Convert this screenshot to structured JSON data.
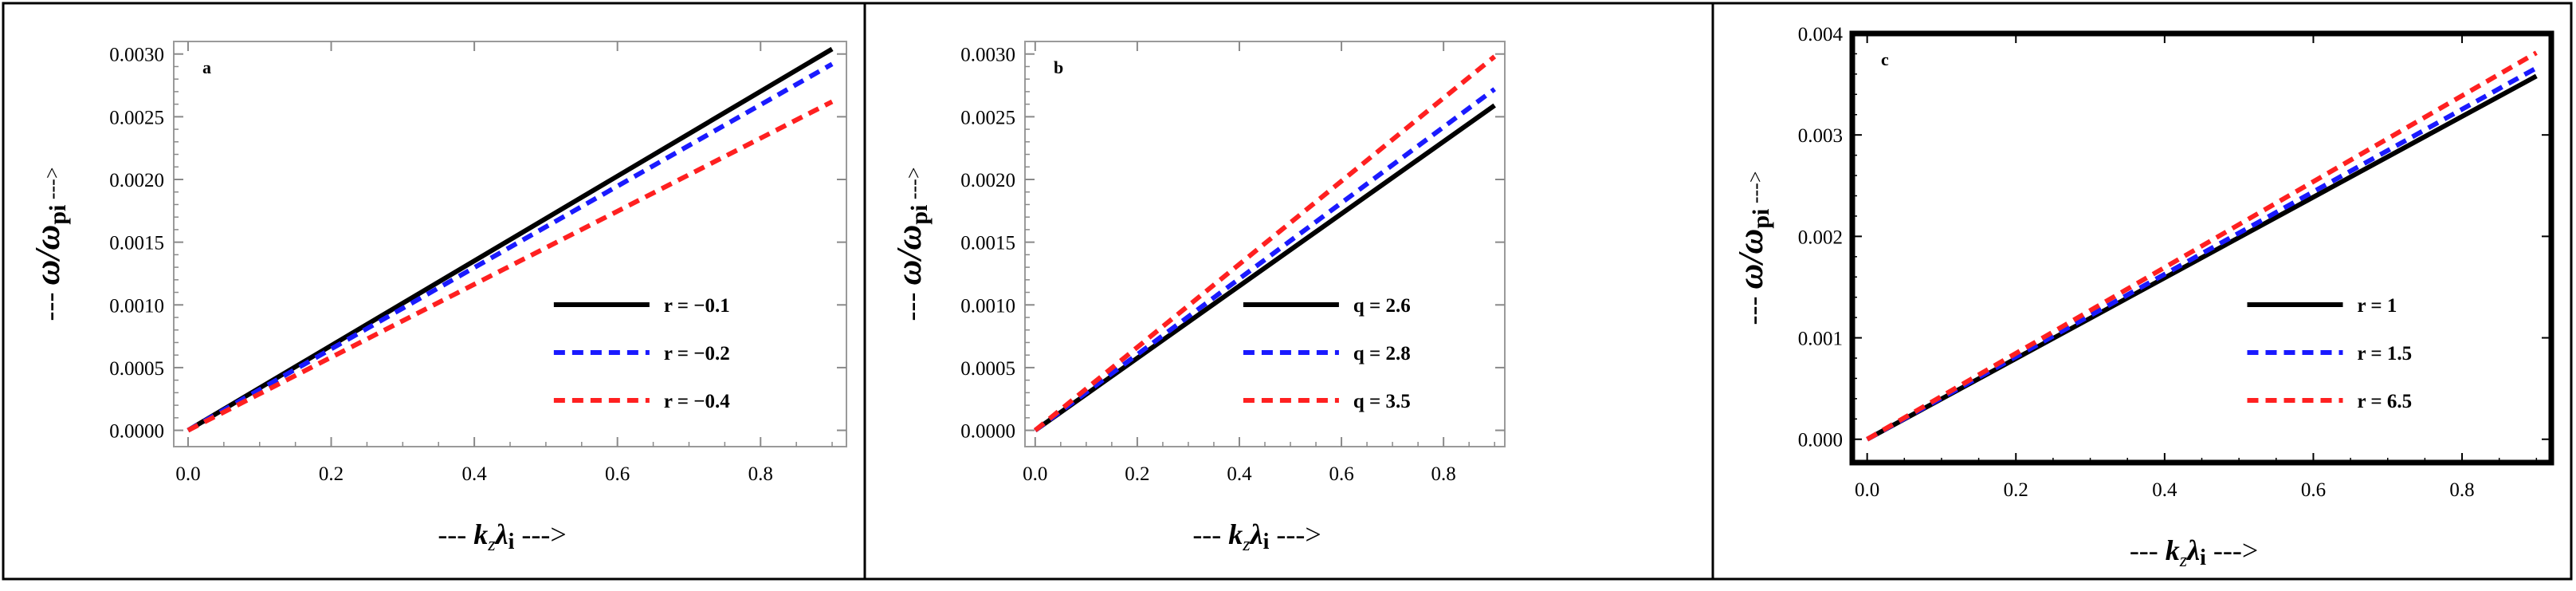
{
  "chart_data": [
    {
      "type": "line",
      "panel_label": "a",
      "xlabel": "k_z λ_i",
      "ylabel": "ω/ω_pi",
      "xlim": [
        -0.02,
        0.92
      ],
      "ylim": [
        -0.00013,
        0.0031
      ],
      "xticks": [
        0.0,
        0.2,
        0.4,
        0.6,
        0.8
      ],
      "xtick_labels": [
        "0.0",
        "0.2",
        "0.4",
        "0.6",
        "0.8"
      ],
      "yticks": [
        0,
        0.0005,
        0.001,
        0.0015,
        0.002,
        0.0025,
        0.003
      ],
      "ytick_labels": [
        "0.0000",
        "0.0005",
        "0.0010",
        "0.0015",
        "0.0020",
        "0.0025",
        "0.0030"
      ],
      "legend_position": "lower-right",
      "series": [
        {
          "name": "r = −0.1",
          "color": "#000000",
          "dashed": false,
          "x": [
            0,
            0.9
          ],
          "values": [
            0,
            0.00304
          ]
        },
        {
          "name": "r = −0.2",
          "color": "#1a1aff",
          "dashed": true,
          "x": [
            0,
            0.9
          ],
          "values": [
            0,
            0.00292
          ]
        },
        {
          "name": "r = −0.4",
          "color": "#ff2020",
          "dashed": true,
          "x": [
            0,
            0.9
          ],
          "values": [
            0,
            0.00262
          ]
        }
      ]
    },
    {
      "type": "line",
      "panel_label": "b",
      "xlabel": "k_z λ_i",
      "ylabel": "ω/ω_pi",
      "xlim": [
        -0.02,
        0.92
      ],
      "ylim": [
        -0.00013,
        0.0031
      ],
      "xticks": [
        0.0,
        0.2,
        0.4,
        0.6,
        0.8
      ],
      "xtick_labels": [
        "0.0",
        "0.2",
        "0.4",
        "0.6",
        "0.8"
      ],
      "yticks": [
        0,
        0.0005,
        0.001,
        0.0015,
        0.002,
        0.0025,
        0.003
      ],
      "ytick_labels": [
        "0.0000",
        "0.0005",
        "0.0010",
        "0.0015",
        "0.0020",
        "0.0025",
        "0.0030"
      ],
      "legend_position": "lower-right",
      "series": [
        {
          "name": "q = 2.6",
          "color": "#000000",
          "dashed": false,
          "x": [
            0,
            0.9
          ],
          "values": [
            0,
            0.00259
          ]
        },
        {
          "name": "q = 2.8",
          "color": "#1a1aff",
          "dashed": true,
          "x": [
            0,
            0.9
          ],
          "values": [
            0,
            0.00272
          ]
        },
        {
          "name": "q = 3.5",
          "color": "#ff2020",
          "dashed": true,
          "x": [
            0,
            0.9
          ],
          "values": [
            0,
            0.00298
          ]
        }
      ]
    },
    {
      "type": "line",
      "panel_label": "c",
      "xlabel": "k_z λ_i",
      "ylabel": "ω/ω_pi",
      "xlim": [
        -0.02,
        0.92
      ],
      "ylim": [
        -0.00023,
        0.004
      ],
      "xticks": [
        0.0,
        0.2,
        0.4,
        0.6,
        0.8
      ],
      "xtick_labels": [
        "0.0",
        "0.2",
        "0.4",
        "0.6",
        "0.8"
      ],
      "yticks": [
        0,
        0.001,
        0.002,
        0.003,
        0.004
      ],
      "ytick_labels": [
        "0.000",
        "0.001",
        "0.002",
        "0.003",
        "0.004"
      ],
      "legend_position": "lower-right",
      "series": [
        {
          "name": "r = 1",
          "color": "#000000",
          "dashed": false,
          "x": [
            0,
            0.9
          ],
          "values": [
            0,
            0.00358
          ]
        },
        {
          "name": "r = 1.5",
          "color": "#1a1aff",
          "dashed": true,
          "x": [
            0,
            0.9
          ],
          "values": [
            0,
            0.00366
          ]
        },
        {
          "name": "r = 6.5",
          "color": "#ff2020",
          "dashed": true,
          "x": [
            0,
            0.9
          ],
          "values": [
            0,
            0.00381
          ]
        }
      ]
    }
  ]
}
